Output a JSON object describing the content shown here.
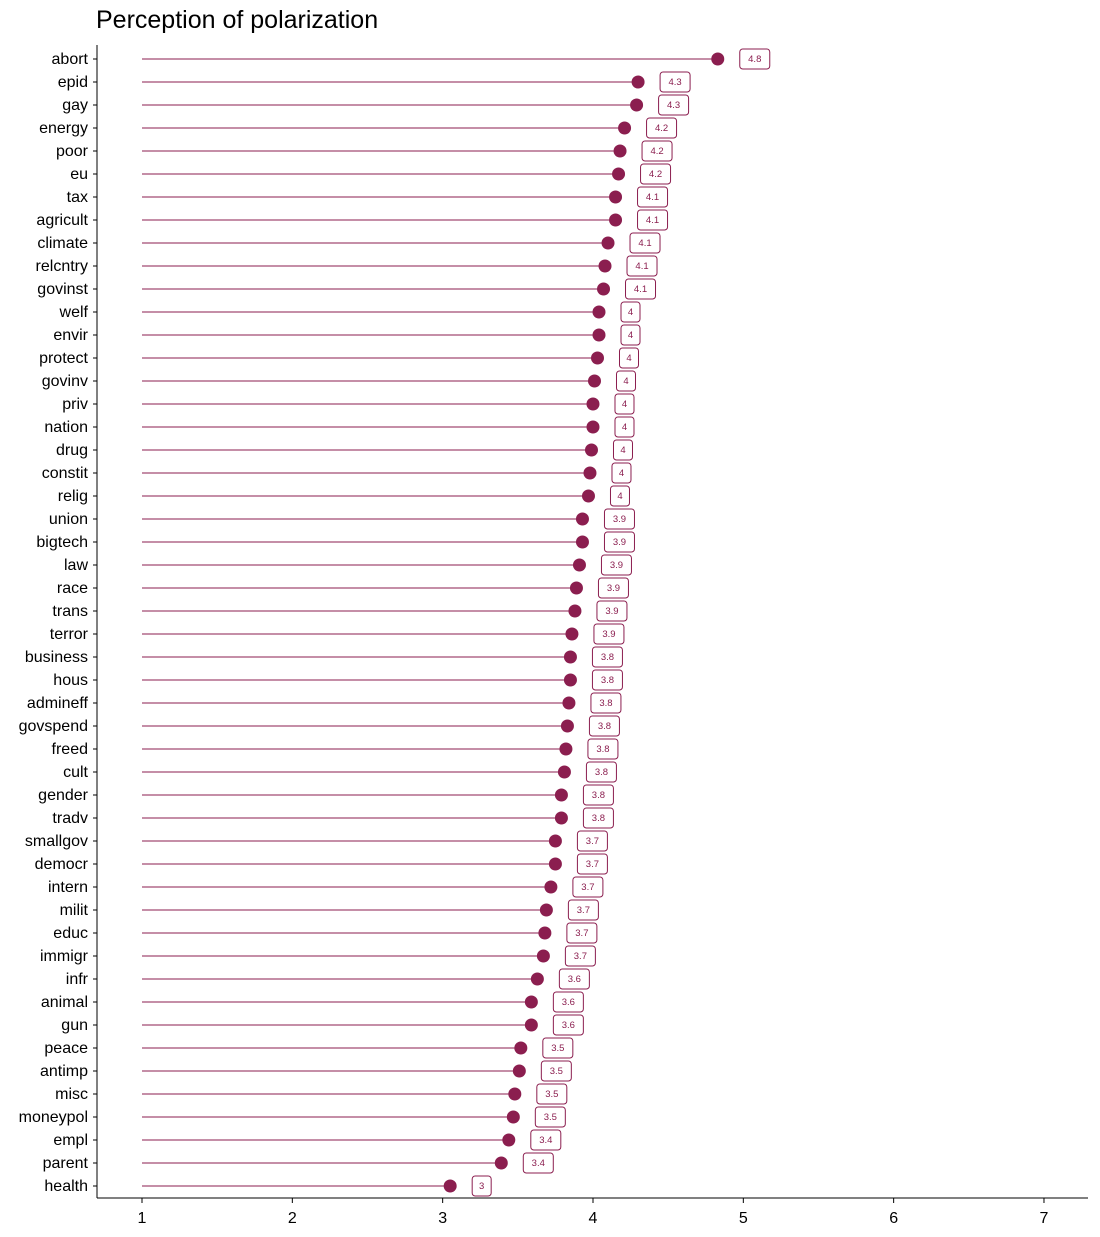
{
  "chart_data": {
    "type": "lollipop",
    "title": "Perception of polarization",
    "xlabel": "",
    "ylabel": "",
    "xlim": [
      0.7,
      7.3
    ],
    "xticks": [
      1,
      2,
      3,
      4,
      5,
      6,
      7
    ],
    "grid": false,
    "legend": "none",
    "color": "#8b1e4f",
    "baseline": 1,
    "categories": [
      "abort",
      "epid",
      "gay",
      "energy",
      "poor",
      "eu",
      "tax",
      "agricult",
      "climate",
      "relcntry",
      "govinst",
      "welf",
      "envir",
      "protect",
      "govinv",
      "priv",
      "nation",
      "drug",
      "constit",
      "relig",
      "union",
      "bigtech",
      "law",
      "race",
      "trans",
      "terror",
      "business",
      "hous",
      "admineff",
      "govspend",
      "freed",
      "cult",
      "gender",
      "tradv",
      "smallgov",
      "democr",
      "intern",
      "milit",
      "educ",
      "immigr",
      "infr",
      "animal",
      "gun",
      "peace",
      "antimp",
      "misc",
      "moneypol",
      "empl",
      "parent",
      "health"
    ],
    "values": [
      4.83,
      4.3,
      4.29,
      4.21,
      4.18,
      4.17,
      4.15,
      4.15,
      4.1,
      4.08,
      4.07,
      4.04,
      4.04,
      4.03,
      4.01,
      4.0,
      4.0,
      3.99,
      3.98,
      3.97,
      3.93,
      3.93,
      3.91,
      3.89,
      3.88,
      3.86,
      3.85,
      3.85,
      3.84,
      3.83,
      3.82,
      3.81,
      3.79,
      3.79,
      3.75,
      3.75,
      3.72,
      3.69,
      3.68,
      3.67,
      3.63,
      3.59,
      3.59,
      3.52,
      3.51,
      3.48,
      3.47,
      3.44,
      3.39,
      3.05
    ],
    "labels": [
      "4.8",
      "4.3",
      "4.3",
      "4.2",
      "4.2",
      "4.2",
      "4.1",
      "4.1",
      "4.1",
      "4.1",
      "4.1",
      "4",
      "4",
      "4",
      "4",
      "4",
      "4",
      "4",
      "4",
      "4",
      "3.9",
      "3.9",
      "3.9",
      "3.9",
      "3.9",
      "3.9",
      "3.8",
      "3.8",
      "3.8",
      "3.8",
      "3.8",
      "3.8",
      "3.8",
      "3.8",
      "3.7",
      "3.7",
      "3.7",
      "3.7",
      "3.7",
      "3.7",
      "3.6",
      "3.6",
      "3.6",
      "3.5",
      "3.5",
      "3.5",
      "3.5",
      "3.4",
      "3.4",
      "3"
    ]
  }
}
